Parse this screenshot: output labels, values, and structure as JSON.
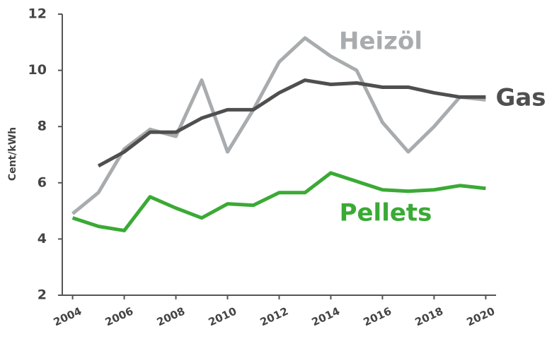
{
  "chart_data": {
    "type": "line",
    "y_label": "Cent/kWh",
    "x": [
      2004,
      2005,
      2006,
      2007,
      2008,
      2009,
      2010,
      2011,
      2012,
      2013,
      2014,
      2015,
      2016,
      2017,
      2018,
      2019,
      2020
    ],
    "series": [
      {
        "name": "Heizöl",
        "color": "#a9acae",
        "values": [
          4.9,
          5.65,
          7.2,
          7.9,
          7.65,
          9.65,
          7.1,
          8.6,
          10.3,
          11.15,
          10.5,
          10.0,
          8.15,
          7.1,
          8.0,
          9.05,
          8.95
        ]
      },
      {
        "name": "Gas",
        "color": "#4f4f4f",
        "values": [
          null,
          6.6,
          7.1,
          7.8,
          7.8,
          8.3,
          8.6,
          8.6,
          9.2,
          9.65,
          9.5,
          9.55,
          9.4,
          9.4,
          9.2,
          9.05,
          9.05
        ]
      },
      {
        "name": "Pellets",
        "color": "#3aaa35",
        "values": [
          4.75,
          4.45,
          4.3,
          5.5,
          5.1,
          4.75,
          5.25,
          5.2,
          5.65,
          5.65,
          6.35,
          6.05,
          5.75,
          5.7,
          5.75,
          5.9,
          5.8
        ]
      }
    ],
    "xlim": [
      2003.6,
      2020.4
    ],
    "xticks": [
      2004,
      2006,
      2008,
      2010,
      2012,
      2014,
      2016,
      2018,
      2020
    ],
    "ylim": [
      2,
      12
    ],
    "yticks": [
      2,
      4,
      6,
      8,
      10,
      12
    ],
    "grid": false
  }
}
